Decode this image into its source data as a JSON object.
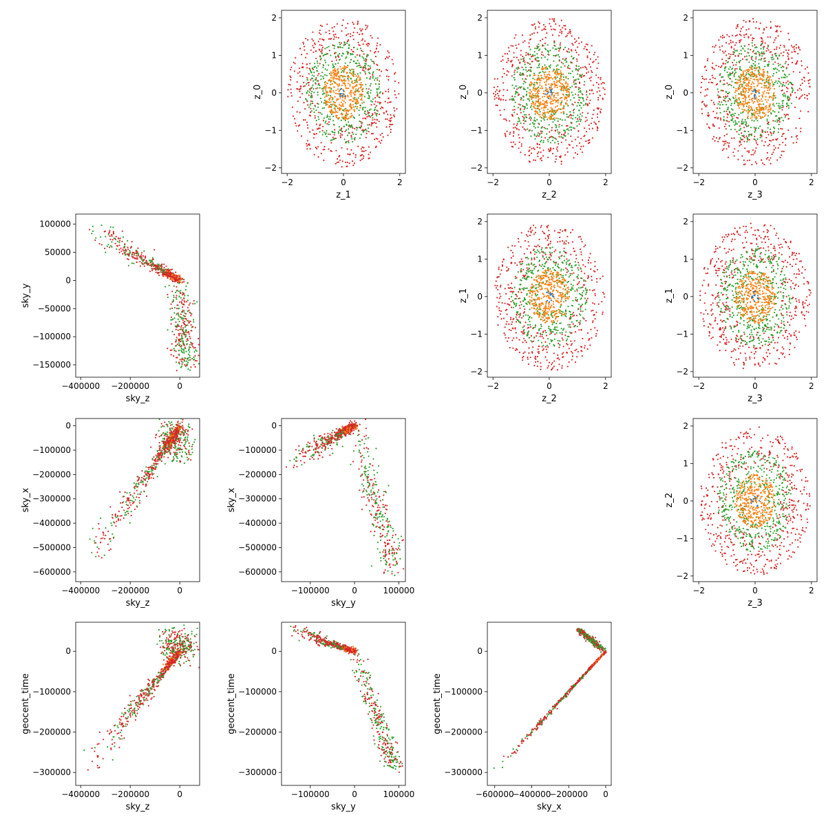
{
  "chart_data": [
    {
      "type": "scatter",
      "row": 0,
      "col": 1,
      "xlabel": "z_1",
      "ylabel": "z_0",
      "xlim": [
        -2.2,
        2.2
      ],
      "ylim": [
        -2.15,
        2.2
      ],
      "xticks": [
        -2,
        0,
        2
      ],
      "yticks": [
        -2,
        -1,
        0,
        1,
        2
      ],
      "ytick_labels": [
        "−2",
        "−1",
        "0",
        "1",
        "2"
      ],
      "xtick_labels": [
        "−2",
        "0",
        "2"
      ],
      "pattern": "gauss"
    },
    {
      "type": "scatter",
      "row": 0,
      "col": 2,
      "xlabel": "z_2",
      "ylabel": "z_0",
      "xlim": [
        -2.2,
        2.2
      ],
      "ylim": [
        -2.15,
        2.2
      ],
      "xticks": [
        -2,
        0,
        2
      ],
      "yticks": [
        -2,
        -1,
        0,
        1,
        2
      ],
      "ytick_labels": [
        "−2",
        "−1",
        "0",
        "1",
        "2"
      ],
      "xtick_labels": [
        "−2",
        "0",
        "2"
      ],
      "pattern": "gauss"
    },
    {
      "type": "scatter",
      "row": 0,
      "col": 3,
      "xlabel": "z_3",
      "ylabel": "z_0",
      "xlim": [
        -2.2,
        2.2
      ],
      "ylim": [
        -2.15,
        2.2
      ],
      "xticks": [
        -2,
        0,
        2
      ],
      "yticks": [
        -2,
        -1,
        0,
        1,
        2
      ],
      "ytick_labels": [
        "−2",
        "−1",
        "0",
        "1",
        "2"
      ],
      "xtick_labels": [
        "−2",
        "0",
        "2"
      ],
      "pattern": "gauss"
    },
    {
      "type": "scatter",
      "row": 1,
      "col": 0,
      "xlabel": "sky_z",
      "ylabel": "sky_y",
      "xlim": [
        -420000,
        80000
      ],
      "ylim": [
        -172000,
        118000
      ],
      "xticks": [
        -400000,
        -200000,
        0
      ],
      "xtick_labels": [
        "−400000",
        "−200000",
        "0"
      ],
      "yticks": [
        -150000,
        -100000,
        -50000,
        0,
        50000,
        100000
      ],
      "ytick_labels": [
        "−150000",
        "−100000",
        "−50000",
        "0",
        "50000",
        "100000"
      ],
      "pattern": "skyz_skyy"
    },
    {
      "type": "scatter",
      "row": 1,
      "col": 2,
      "xlabel": "z_2",
      "ylabel": "z_1",
      "xlim": [
        -2.2,
        2.2
      ],
      "ylim": [
        -2.15,
        2.2
      ],
      "xticks": [
        -2,
        0,
        2
      ],
      "yticks": [
        -2,
        -1,
        0,
        1,
        2
      ],
      "ytick_labels": [
        "−2",
        "−1",
        "0",
        "1",
        "2"
      ],
      "xtick_labels": [
        "−2",
        "0",
        "2"
      ],
      "pattern": "gauss"
    },
    {
      "type": "scatter",
      "row": 1,
      "col": 3,
      "xlabel": "z_3",
      "ylabel": "z_1",
      "xlim": [
        -2.2,
        2.2
      ],
      "ylim": [
        -2.15,
        2.2
      ],
      "xticks": [
        -2,
        0,
        2
      ],
      "yticks": [
        -2,
        -1,
        0,
        1,
        2
      ],
      "ytick_labels": [
        "−2",
        "−1",
        "0",
        "1",
        "2"
      ],
      "xtick_labels": [
        "−2",
        "0",
        "2"
      ],
      "pattern": "gauss"
    },
    {
      "type": "scatter",
      "row": 2,
      "col": 0,
      "xlabel": "sky_z",
      "ylabel": "sky_x",
      "xlim": [
        -420000,
        80000
      ],
      "ylim": [
        -640000,
        30000
      ],
      "xticks": [
        -400000,
        -200000,
        0
      ],
      "xtick_labels": [
        "−400000",
        "−200000",
        "0"
      ],
      "yticks": [
        -600000,
        -500000,
        -400000,
        -300000,
        -200000,
        -100000,
        0
      ],
      "ytick_labels": [
        "−600000",
        "−500000",
        "−400000",
        "−300000",
        "−200000",
        "−100000",
        "0"
      ],
      "pattern": "skyz_skyx"
    },
    {
      "type": "scatter",
      "row": 2,
      "col": 1,
      "xlabel": "sky_y",
      "ylabel": "sky_x",
      "xlim": [
        -165000,
        115000
      ],
      "ylim": [
        -640000,
        30000
      ],
      "xticks": [
        -100000,
        0,
        100000
      ],
      "xtick_labels": [
        "−100000",
        "0",
        "100000"
      ],
      "yticks": [
        -600000,
        -500000,
        -400000,
        -300000,
        -200000,
        -100000,
        0
      ],
      "ytick_labels": [
        "−600000",
        "−500000",
        "−400000",
        "−300000",
        "−200000",
        "−100000",
        "0"
      ],
      "pattern": "skyy_skyx"
    },
    {
      "type": "scatter",
      "row": 2,
      "col": 3,
      "xlabel": "z_3",
      "ylabel": "z_2",
      "xlim": [
        -2.2,
        2.2
      ],
      "ylim": [
        -2.15,
        2.2
      ],
      "xticks": [
        -2,
        0,
        2
      ],
      "yticks": [
        -2,
        -1,
        0,
        1,
        2
      ],
      "ytick_labels": [
        "−2",
        "−1",
        "0",
        "1",
        "2"
      ],
      "xtick_labels": [
        "−2",
        "0",
        "2"
      ],
      "pattern": "gauss"
    },
    {
      "type": "scatter",
      "row": 3,
      "col": 0,
      "xlabel": "sky_z",
      "ylabel": "geocent_time",
      "xlim": [
        -420000,
        80000
      ],
      "ylim": [
        -332000,
        72000
      ],
      "xticks": [
        -400000,
        -200000,
        0
      ],
      "xtick_labels": [
        "−400000",
        "−200000",
        "0"
      ],
      "yticks": [
        -300000,
        -200000,
        -100000,
        0
      ],
      "ytick_labels": [
        "−300000",
        "−200000",
        "−100000",
        "0"
      ],
      "pattern": "skyz_time"
    },
    {
      "type": "scatter",
      "row": 3,
      "col": 1,
      "xlabel": "sky_y",
      "ylabel": "geocent_time",
      "xlim": [
        -165000,
        115000
      ],
      "ylim": [
        -332000,
        72000
      ],
      "xticks": [
        -100000,
        0,
        100000
      ],
      "xtick_labels": [
        "−100000",
        "0",
        "100000"
      ],
      "yticks": [
        -300000,
        -200000,
        -100000,
        0
      ],
      "ytick_labels": [
        "−300000",
        "−200000",
        "−100000",
        "0"
      ],
      "pattern": "skyy_time"
    },
    {
      "type": "scatter",
      "row": 3,
      "col": 2,
      "xlabel": "sky_x",
      "ylabel": "geocent_time",
      "xlim": [
        -640000,
        30000
      ],
      "ylim": [
        -332000,
        72000
      ],
      "xticks": [
        -600000,
        -400000,
        -200000,
        0
      ],
      "xtick_labels": [
        "−600000",
        "−400000",
        "−200000",
        "0"
      ],
      "yticks": [
        -300000,
        -200000,
        -100000,
        0
      ],
      "ytick_labels": [
        "−300000",
        "−200000",
        "−100000",
        "0"
      ],
      "pattern": "skyx_time"
    }
  ],
  "colors": {
    "inner": "#ff7f0e",
    "middle": "#2ca02c",
    "outer": "#d62728",
    "core": "#1f77b4"
  }
}
